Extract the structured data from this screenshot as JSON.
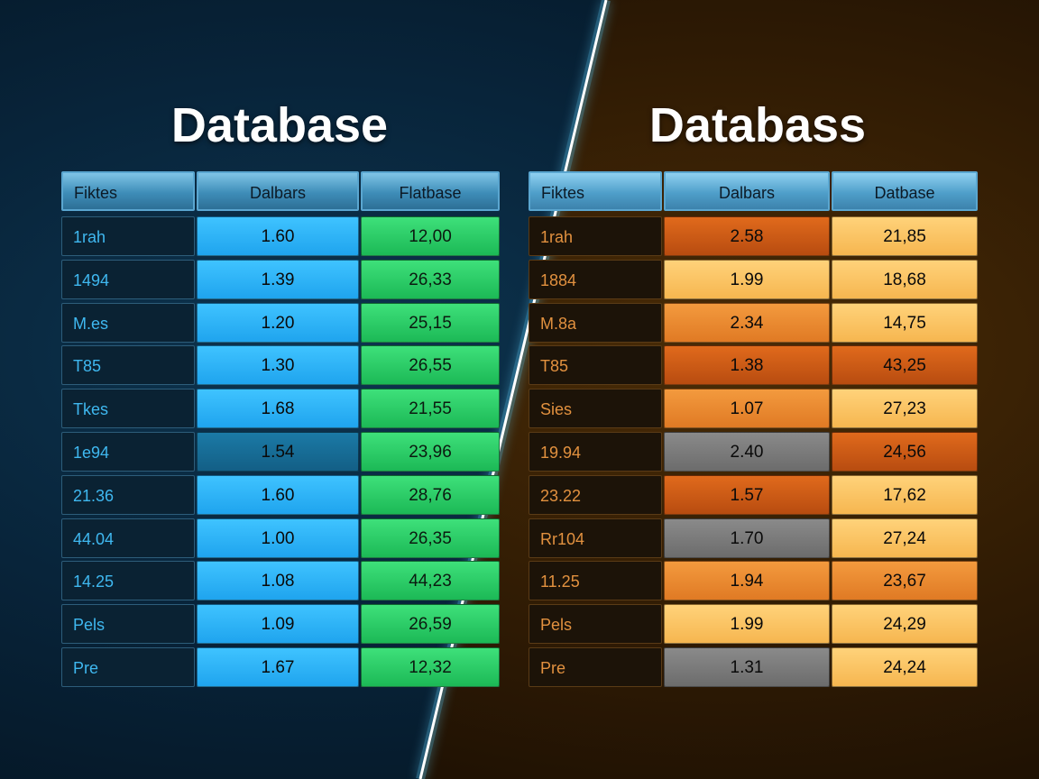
{
  "left": {
    "title": "Database",
    "headers": [
      "Fiktes",
      "Dalbars",
      "Flatbase"
    ],
    "rows": [
      {
        "label": "1rah",
        "v1": "1.60",
        "v2": "12,00",
        "c1": "blue",
        "c2": "green"
      },
      {
        "label": "1494",
        "v1": "1.39",
        "v2": "26,33",
        "c1": "blue",
        "c2": "green"
      },
      {
        "label": "M.es",
        "v1": "1.20",
        "v2": "25,15",
        "c1": "blue",
        "c2": "green"
      },
      {
        "label": "T85",
        "v1": "1.30",
        "v2": "26,55",
        "c1": "blue",
        "c2": "green"
      },
      {
        "label": "Tkes",
        "v1": "1.68",
        "v2": "21,55",
        "c1": "blue",
        "c2": "green"
      },
      {
        "label": "1e94",
        "v1": "1.54",
        "v2": "23,96",
        "c1": "blue-dark",
        "c2": "green"
      },
      {
        "label": "21.36",
        "v1": "1.60",
        "v2": "28,76",
        "c1": "blue",
        "c2": "green"
      },
      {
        "label": "44.04",
        "v1": "1.00",
        "v2": "26,35",
        "c1": "blue",
        "c2": "green"
      },
      {
        "label": "14.25",
        "v1": "1.08",
        "v2": "44,23",
        "c1": "blue",
        "c2": "green"
      },
      {
        "label": "Pels",
        "v1": "1.09",
        "v2": "26,59",
        "c1": "blue",
        "c2": "green"
      },
      {
        "label": "Pre",
        "v1": "1.67",
        "v2": "12,32",
        "c1": "blue",
        "c2": "green"
      }
    ]
  },
  "right": {
    "title": "Databass",
    "headers": [
      "Fiktes",
      "Dalbars",
      "Datbase"
    ],
    "rows": [
      {
        "label": "1rah",
        "v1": "2.58",
        "v2": "21,85",
        "c1": "orange-dark",
        "c2": "yellow"
      },
      {
        "label": "1884",
        "v1": "1.99",
        "v2": "18,68",
        "c1": "yellow",
        "c2": "yellow"
      },
      {
        "label": "M.8a",
        "v1": "2.34",
        "v2": "14,75",
        "c1": "orange",
        "c2": "yellow"
      },
      {
        "label": "T85",
        "v1": "1.38",
        "v2": "43,25",
        "c1": "orange-dark",
        "c2": "orange-dark"
      },
      {
        "label": "Sies",
        "v1": "1.07",
        "v2": "27,23",
        "c1": "orange",
        "c2": "yellow"
      },
      {
        "label": "19.94",
        "v1": "2.40",
        "v2": "24,56",
        "c1": "gray",
        "c2": "orange-dark"
      },
      {
        "label": "23.22",
        "v1": "1.57",
        "v2": "17,62",
        "c1": "orange-dark",
        "c2": "yellow"
      },
      {
        "label": "Rr104",
        "v1": "1.70",
        "v2": "27,24",
        "c1": "gray",
        "c2": "yellow"
      },
      {
        "label": "11.25",
        "v1": "1.94",
        "v2": "23,67",
        "c1": "orange",
        "c2": "orange"
      },
      {
        "label": "Pels",
        "v1": "1.99",
        "v2": "24,29",
        "c1": "yellow",
        "c2": "yellow"
      },
      {
        "label": "Pre",
        "v1": "1.31",
        "v2": "24,24",
        "c1": "gray",
        "c2": "yellow"
      }
    ]
  },
  "colors": {
    "left_accent": "#3fc3ff",
    "left_green": "#3ee07a",
    "right_orange": "#e07a24",
    "right_yellow": "#ffd27a",
    "divider": "#ffffff"
  }
}
